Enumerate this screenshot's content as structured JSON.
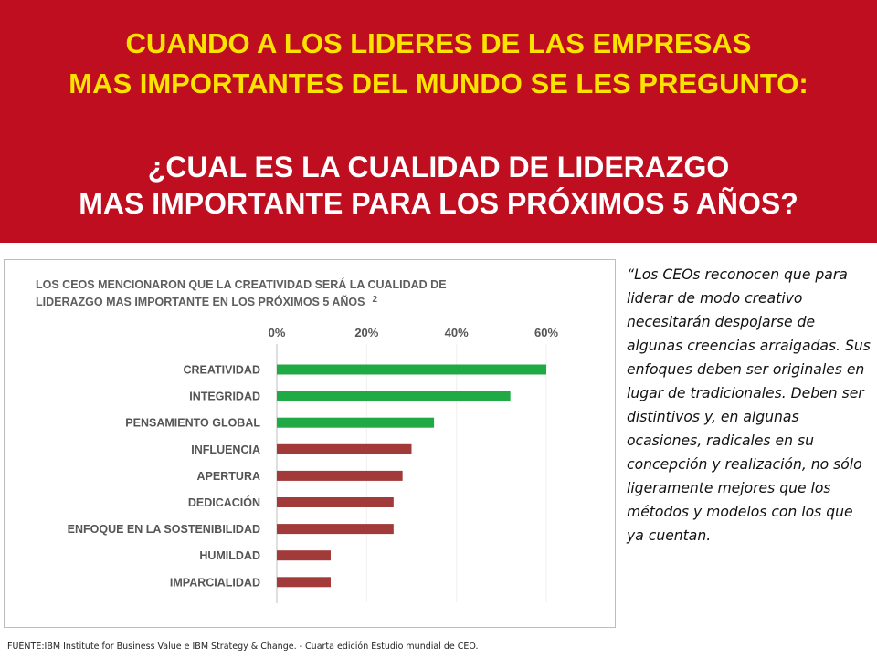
{
  "banner": {
    "line1": "CUANDO A LOS LIDERES DE LAS EMPRESAS",
    "line2": "MAS IMPORTANTES DEL MUNDO SE LES PREGUNTO:",
    "question1": "¿CUAL ES LA CUALIDAD DE LIDERAZGO",
    "question2": "MAS IMPORTANTE PARA LOS PRÓXIMOS 5 AÑOS?"
  },
  "quote": "“Los CEOs reconocen que para liderar de modo creativo necesitarán despojarse de algunas creencias arraigadas. Sus enfoques deben ser originales en lugar de tradicionales. Deben ser distintivos y, en algunas ocasiones, radicales en su concepción y realización, no sólo ligeramente mejores que los métodos y modelos con los que ya cuentan.",
  "source": "FUENTE:IBM  Institute for Business Value e IBM Strategy & Change. - Cuarta edición Estudio mundial de CEO.",
  "colors": {
    "banner": "#bf0e1f",
    "banner_text": "#fbe300",
    "green": "#1faa45",
    "red": "#a33a3a"
  },
  "chart_data": {
    "type": "bar",
    "orientation": "horizontal",
    "title_line1": "LOS CEOS MENCIONARON  QUE LA CREATIVIDAD  SERÁ LA CUALIDAD DE",
    "title_line2": "LIDERAZGO MAS IMPORTANTE  EN LOS PRÓXIMOS 5 AÑOS",
    "title_superscript": "2",
    "x_ticks": [
      "0%",
      "20%",
      "40%",
      "60%"
    ],
    "xlim": [
      0,
      60
    ],
    "categories": [
      "CREATIVIDAD",
      "INTEGRIDAD",
      "PENSAMIENTO  GLOBAL",
      "INFLUENCIA",
      "APERTURA",
      "DEDICACIÓN",
      "ENFOQUE EN LA SOSTENIBILIDAD",
      "HUMILDAD",
      "IMPARCIALIDAD"
    ],
    "values": [
      60,
      52,
      35,
      30,
      28,
      26,
      26,
      12,
      12
    ],
    "bar_colors": [
      "#1faa45",
      "#1faa45",
      "#1faa45",
      "#a33a3a",
      "#a33a3a",
      "#a33a3a",
      "#a33a3a",
      "#a33a3a",
      "#a33a3a"
    ]
  }
}
